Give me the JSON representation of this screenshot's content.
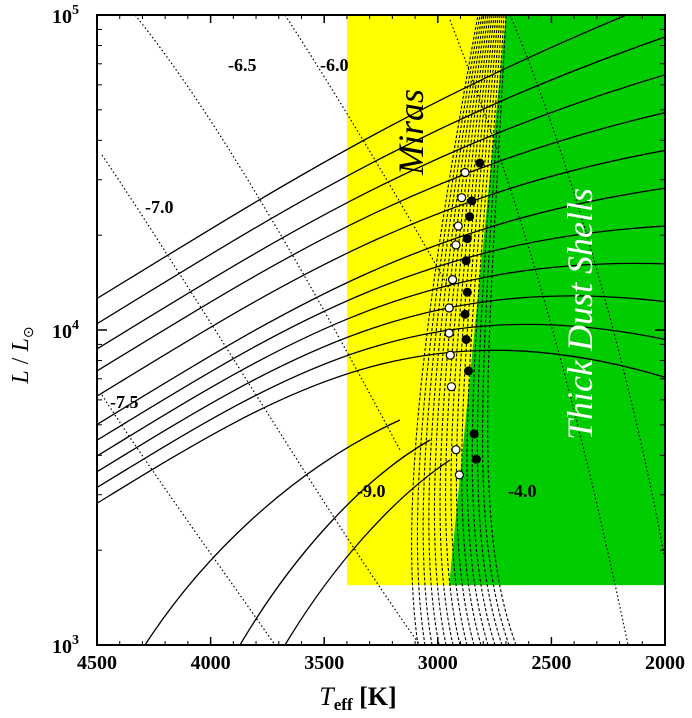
{
  "chart_data": {
    "type": "line",
    "title": "",
    "xlabel_main": "T",
    "xlabel_sub": "eff",
    "xlabel_unit": " [K]",
    "ylabel_main": "L",
    "ylabel_sep": " / ",
    "ylabel_sub_main": "L",
    "ylabel_sub": "⊙",
    "x_scale": "linear",
    "x_reversed": true,
    "xlim": [
      4500,
      2000
    ],
    "xticks": [
      4500,
      4000,
      3500,
      3000,
      2500,
      2000
    ],
    "xtick_labels": [
      "4500",
      "4000",
      "3500",
      "3000",
      "2500",
      "2000"
    ],
    "y_scale": "log",
    "ylim": [
      1000,
      100000
    ],
    "ytick_labels": [
      {
        "value": 1000,
        "base": "10",
        "exp": "3"
      },
      {
        "value": 10000,
        "base": "10",
        "exp": "4"
      },
      {
        "value": 100000,
        "base": "10",
        "exp": "5"
      }
    ],
    "regions": [
      {
        "name": "Miras",
        "color": "#ffff00",
        "teff_range": [
          3400,
          2800
        ],
        "logL_range": [
          3.19,
          5.0
        ]
      },
      {
        "name": "Thick Dust Shells",
        "color": "#00cc00",
        "teff_range": [
          2950,
          2000
        ],
        "logL_range": [
          3.19,
          5.0
        ],
        "boundary_teff_bottom": 2950,
        "boundary_teff_top": 2700
      }
    ],
    "region_labels": [
      {
        "text": "Miras",
        "color": "#000000"
      },
      {
        "text": "Thick Dust Shells",
        "color": "#ffffff"
      }
    ],
    "mass_loss_lines": {
      "style": "dotted",
      "labels": [
        {
          "text": "-7.5",
          "value": -7.5
        },
        {
          "text": "-7.0",
          "value": -7.0
        },
        {
          "text": "-6.5",
          "value": -6.5
        },
        {
          "text": "-6.0",
          "value": -6.0
        },
        {
          "text": "-9.0",
          "value": -9.0
        },
        {
          "text": "-4.0",
          "value": -4.0
        }
      ]
    },
    "giant_branch_tracks": {
      "style": "solid",
      "count": 11,
      "start_teff": 4500,
      "start_logL": [
        3.45,
        3.5,
        3.55,
        3.6,
        3.65,
        3.7,
        3.79,
        3.87,
        3.94,
        4.02,
        4.1
      ]
    },
    "evolution_tracks": {
      "style": "dashed",
      "count": 15
    },
    "markers": {
      "open": [
        {
          "teff": 2905,
          "logL": 3.54
        },
        {
          "teff": 2920,
          "logL": 3.62
        },
        {
          "teff": 2940,
          "logL": 3.82
        },
        {
          "teff": 2945,
          "logL": 3.92
        },
        {
          "teff": 2950,
          "logL": 3.99
        },
        {
          "teff": 2950,
          "logL": 4.07
        },
        {
          "teff": 2935,
          "logL": 4.16
        },
        {
          "teff": 2920,
          "logL": 4.27
        },
        {
          "teff": 2910,
          "logL": 4.33
        },
        {
          "teff": 2895,
          "logL": 4.42
        },
        {
          "teff": 2880,
          "logL": 4.5
        }
      ],
      "filled": [
        {
          "teff": 2830,
          "logL": 3.59
        },
        {
          "teff": 2840,
          "logL": 3.67
        },
        {
          "teff": 2865,
          "logL": 3.87
        },
        {
          "teff": 2875,
          "logL": 3.97
        },
        {
          "teff": 2880,
          "logL": 4.05
        },
        {
          "teff": 2870,
          "logL": 4.12
        },
        {
          "teff": 2875,
          "logL": 4.22
        },
        {
          "teff": 2870,
          "logL": 4.29
        },
        {
          "teff": 2860,
          "logL": 4.36
        },
        {
          "teff": 2850,
          "logL": 4.41
        },
        {
          "teff": 2815,
          "logL": 4.53
        }
      ]
    }
  }
}
